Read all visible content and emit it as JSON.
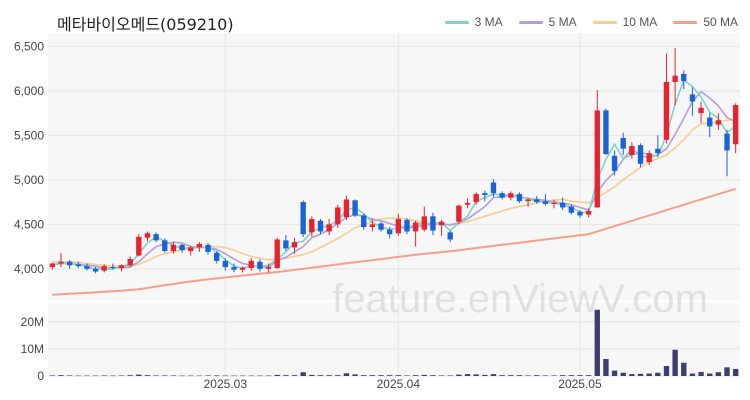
{
  "title": "메타바이오메드(059210)",
  "watermark": "feature.enViewV.com",
  "legend": [
    {
      "label": "3 MA",
      "color": "#7dd3c8"
    },
    {
      "label": "5 MA",
      "color": "#b39ddb"
    },
    {
      "label": "10 MA",
      "color": "#f5cf8e"
    },
    {
      "label": "50 MA",
      "color": "#f6a08a"
    }
  ],
  "colors": {
    "up": "#e8222e",
    "down": "#1a63d6",
    "volume": "#3e3f6b",
    "grid": "#e6e6e6",
    "panel": "#f7f7f7"
  },
  "chart_data": [
    {
      "type": "candlestick",
      "title": "메타바이오메드(059210)",
      "ylim": [
        3650,
        6650
      ],
      "y_ticks": [
        4000,
        4500,
        5000,
        5500,
        6000,
        6500
      ],
      "y_tick_labels": [
        "4,000",
        "4,500",
        "5,000",
        "5,500",
        "6,000",
        "6,500"
      ],
      "x_tick_labels": [
        {
          "index": 20,
          "label": "2025.03"
        },
        {
          "index": 40,
          "label": "2025.04"
        },
        {
          "index": 61,
          "label": "2025.05"
        }
      ],
      "ohlc": [
        [
          4020,
          4070,
          3990,
          4060
        ],
        [
          4060,
          4180,
          4020,
          4080
        ],
        [
          4080,
          4100,
          4000,
          4040
        ],
        [
          4050,
          4080,
          4010,
          4030
        ],
        [
          4030,
          4060,
          3980,
          4000
        ],
        [
          4000,
          4020,
          3950,
          3970
        ],
        [
          3980,
          4050,
          3960,
          4030
        ],
        [
          4020,
          4060,
          3990,
          4010
        ],
        [
          4010,
          4050,
          3970,
          4040
        ],
        [
          4040,
          4140,
          4020,
          4110
        ],
        [
          4150,
          4390,
          4140,
          4360
        ],
        [
          4350,
          4420,
          4310,
          4400
        ],
        [
          4390,
          4410,
          4300,
          4320
        ],
        [
          4320,
          4340,
          4180,
          4200
        ],
        [
          4200,
          4300,
          4170,
          4270
        ],
        [
          4270,
          4280,
          4180,
          4210
        ],
        [
          4200,
          4260,
          4150,
          4240
        ],
        [
          4240,
          4300,
          4190,
          4280
        ],
        [
          4270,
          4290,
          4160,
          4190
        ],
        [
          4180,
          4200,
          4060,
          4090
        ],
        [
          4090,
          4120,
          3980,
          4020
        ],
        [
          4020,
          4060,
          3960,
          3990
        ],
        [
          3990,
          4030,
          3960,
          4010
        ],
        [
          4010,
          4120,
          3980,
          4090
        ],
        [
          4080,
          4110,
          3970,
          4000
        ],
        [
          4000,
          4060,
          3960,
          4020
        ],
        [
          4010,
          4350,
          4000,
          4330
        ],
        [
          4320,
          4380,
          4200,
          4230
        ],
        [
          4240,
          4350,
          4170,
          4300
        ],
        [
          4750,
          4770,
          4360,
          4390
        ],
        [
          4410,
          4590,
          4360,
          4560
        ],
        [
          4540,
          4560,
          4390,
          4420
        ],
        [
          4420,
          4560,
          4380,
          4500
        ],
        [
          4500,
          4720,
          4460,
          4690
        ],
        [
          4580,
          4820,
          4550,
          4780
        ],
        [
          4770,
          4780,
          4580,
          4600
        ],
        [
          4600,
          4620,
          4440,
          4470
        ],
        [
          4470,
          4560,
          4420,
          4500
        ],
        [
          4510,
          4530,
          4420,
          4440
        ],
        [
          4440,
          4470,
          4340,
          4390
        ],
        [
          4400,
          4620,
          4370,
          4560
        ],
        [
          4550,
          4570,
          4390,
          4420
        ],
        [
          4420,
          4540,
          4250,
          4520
        ],
        [
          4440,
          4700,
          4420,
          4590
        ],
        [
          4590,
          4630,
          4380,
          4430
        ],
        [
          4490,
          4550,
          4370,
          4530
        ],
        [
          4410,
          4430,
          4300,
          4330
        ],
        [
          4530,
          4720,
          4500,
          4710
        ],
        [
          4720,
          4790,
          4680,
          4740
        ],
        [
          4750,
          4860,
          4720,
          4840
        ],
        [
          4850,
          4880,
          4760,
          4830
        ],
        [
          4970,
          5010,
          4810,
          4850
        ],
        [
          4850,
          4870,
          4780,
          4800
        ],
        [
          4800,
          4870,
          4770,
          4850
        ],
        [
          4840,
          4860,
          4740,
          4760
        ],
        [
          4760,
          4800,
          4700,
          4780
        ],
        [
          4780,
          4820,
          4730,
          4750
        ],
        [
          4760,
          4840,
          4710,
          4730
        ],
        [
          4730,
          4780,
          4680,
          4740
        ],
        [
          4740,
          4800,
          4660,
          4690
        ],
        [
          4700,
          4720,
          4610,
          4630
        ],
        [
          4640,
          4660,
          4570,
          4600
        ],
        [
          4610,
          4680,
          4580,
          4650
        ],
        [
          4690,
          6010,
          4690,
          5780
        ],
        [
          5780,
          5800,
          5280,
          5290
        ],
        [
          5270,
          5330,
          5050,
          5100
        ],
        [
          5470,
          5530,
          5280,
          5350
        ],
        [
          5280,
          5420,
          5240,
          5380
        ],
        [
          5390,
          5410,
          5140,
          5180
        ],
        [
          5200,
          5330,
          5170,
          5300
        ],
        [
          5350,
          5500,
          5270,
          5300
        ],
        [
          5450,
          6420,
          5410,
          6100
        ],
        [
          6100,
          6480,
          5840,
          6170
        ],
        [
          6190,
          6230,
          6020,
          6110
        ],
        [
          5960,
          6040,
          5720,
          5880
        ],
        [
          5750,
          5880,
          5640,
          5810
        ],
        [
          5700,
          5750,
          5480,
          5600
        ],
        [
          5620,
          5750,
          5560,
          5670
        ],
        [
          5520,
          5560,
          5040,
          5330
        ],
        [
          5400,
          5860,
          5300,
          5840
        ]
      ],
      "series": [
        {
          "name": "3 MA",
          "values": [
            4040,
            4060,
            4060,
            4050,
            4020,
            4000,
            4000,
            4000,
            4030,
            4050,
            4170,
            4290,
            4360,
            4310,
            4260,
            4230,
            4240,
            4240,
            4240,
            4190,
            4100,
            4030,
            4010,
            4030,
            4030,
            4040,
            4110,
            4190,
            4290,
            4310,
            4420,
            4460,
            4490,
            4540,
            4660,
            4690,
            4620,
            4520,
            4470,
            4440,
            4460,
            4460,
            4500,
            4510,
            4510,
            4520,
            4430,
            4520,
            4590,
            4760,
            4800,
            4840,
            4830,
            4830,
            4800,
            4790,
            4760,
            4750,
            4740,
            4720,
            4690,
            4640,
            4630,
            5000,
            5230,
            5400,
            5240,
            5280,
            5300,
            5290,
            5260,
            5500,
            5850,
            6120,
            6050,
            5930,
            5760,
            5690,
            5530,
            5610
          ]
        },
        {
          "name": "5 MA",
          "values": [
            4050,
            4060,
            4060,
            4050,
            4040,
            4030,
            4010,
            4010,
            4010,
            4020,
            4080,
            4170,
            4250,
            4280,
            4300,
            4290,
            4250,
            4240,
            4240,
            4220,
            4170,
            4110,
            4060,
            4040,
            4020,
            4020,
            4090,
            4130,
            4190,
            4250,
            4350,
            4390,
            4440,
            4510,
            4580,
            4610,
            4590,
            4560,
            4540,
            4510,
            4480,
            4460,
            4470,
            4490,
            4500,
            4510,
            4490,
            4520,
            4560,
            4630,
            4700,
            4800,
            4810,
            4830,
            4810,
            4790,
            4780,
            4770,
            4750,
            4740,
            4720,
            4690,
            4660,
            4860,
            4990,
            5090,
            5230,
            5350,
            5270,
            5250,
            5280,
            5350,
            5510,
            5690,
            5880,
            5990,
            5920,
            5830,
            5700,
            5650
          ]
        },
        {
          "name": "10 MA",
          "values": [
            4080,
            4080,
            4080,
            4070,
            4060,
            4050,
            4040,
            4030,
            4030,
            4030,
            4050,
            4090,
            4140,
            4170,
            4190,
            4210,
            4230,
            4240,
            4250,
            4250,
            4240,
            4210,
            4170,
            4140,
            4120,
            4100,
            4110,
            4120,
            4140,
            4160,
            4190,
            4240,
            4290,
            4340,
            4400,
            4460,
            4500,
            4530,
            4560,
            4570,
            4570,
            4560,
            4540,
            4520,
            4510,
            4500,
            4500,
            4510,
            4530,
            4560,
            4590,
            4620,
            4650,
            4680,
            4700,
            4720,
            4740,
            4760,
            4770,
            4780,
            4760,
            4750,
            4740,
            4800,
            4860,
            4920,
            5000,
            5070,
            5140,
            5200,
            5240,
            5280,
            5360,
            5450,
            5560,
            5630,
            5640,
            5650,
            5670,
            5680
          ]
        },
        {
          "name": "50 MA",
          "values": [
            3710,
            3715,
            3720,
            3725,
            3730,
            3735,
            3742,
            3748,
            3755,
            3762,
            3770,
            3785,
            3800,
            3815,
            3830,
            3845,
            3858,
            3870,
            3882,
            3893,
            3904,
            3914,
            3924,
            3934,
            3944,
            3954,
            3965,
            3976,
            3988,
            4000,
            4012,
            4025,
            4038,
            4050,
            4062,
            4074,
            4086,
            4098,
            4110,
            4122,
            4134,
            4146,
            4158,
            4168,
            4178,
            4188,
            4198,
            4210,
            4222,
            4234,
            4246,
            4258,
            4270,
            4282,
            4294,
            4306,
            4318,
            4330,
            4342,
            4354,
            4366,
            4378,
            4390,
            4420,
            4450,
            4480,
            4510,
            4540,
            4570,
            4600,
            4630,
            4660,
            4690,
            4720,
            4750,
            4780,
            4810,
            4840,
            4870,
            4900
          ]
        }
      ]
    },
    {
      "type": "bar",
      "name": "volume",
      "ylim": [
        0,
        27000000
      ],
      "y_ticks": [
        0,
        10000000,
        20000000
      ],
      "y_tick_labels": [
        "0",
        "10M",
        "20M"
      ],
      "values": [
        200000,
        300000,
        200000,
        150000,
        150000,
        150000,
        200000,
        150000,
        200000,
        300000,
        500000,
        300000,
        200000,
        200000,
        200000,
        150000,
        150000,
        150000,
        200000,
        200000,
        150000,
        150000,
        150000,
        150000,
        150000,
        150000,
        400000,
        300000,
        300000,
        1400000,
        400000,
        300000,
        300000,
        300000,
        1000000,
        600000,
        300000,
        300000,
        300000,
        300000,
        300000,
        200000,
        300000,
        400000,
        300000,
        200000,
        200000,
        500000,
        700000,
        600000,
        400000,
        700000,
        300000,
        300000,
        300000,
        200000,
        300000,
        200000,
        200000,
        300000,
        300000,
        300000,
        300000,
        24500000,
        6300000,
        2000000,
        1200000,
        700000,
        800000,
        900000,
        1200000,
        3700000,
        9700000,
        4900000,
        900000,
        1500000,
        900000,
        1400000,
        3200000,
        2600000
      ]
    }
  ]
}
